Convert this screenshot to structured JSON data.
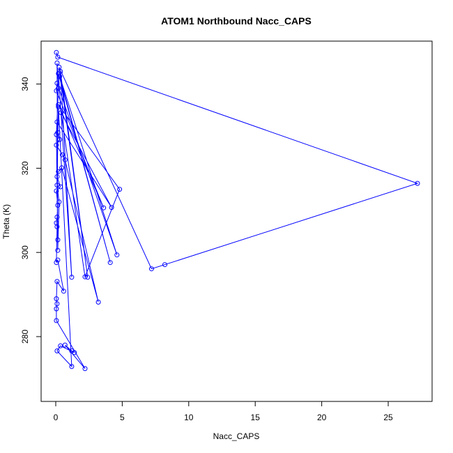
{
  "chart_data": {
    "type": "scatter",
    "title": "ATOM1 Northbound Nacc_CAPS",
    "xlabel": "Nacc_CAPS",
    "ylabel": "Theta (K)",
    "xlim": [
      -1.1,
      28.3
    ],
    "ylim": [
      264.6,
      350.2
    ],
    "x_ticks": [
      0,
      5,
      10,
      15,
      20,
      25
    ],
    "y_ticks": [
      280,
      300,
      320,
      340
    ],
    "color": "#0000ff",
    "style": "overplotted points and connecting lines",
    "series": [
      {
        "values": [
          [
            0.05,
            347.5
          ],
          [
            0.15,
            346.4
          ],
          [
            27.2,
            316.4
          ],
          [
            8.2,
            297.1
          ],
          [
            7.2,
            296.1
          ],
          [
            0.25,
            344.0
          ],
          [
            2.4,
            294.1
          ],
          [
            0.35,
            343.0
          ],
          [
            1.2,
            294.1
          ],
          [
            0.2,
            342.5
          ],
          [
            4.1,
            297.6
          ],
          [
            0.3,
            341.8
          ],
          [
            4.6,
            299.4
          ],
          [
            0.1,
            340.2
          ],
          [
            0.05,
            338.4
          ],
          [
            3.6,
            310.6
          ],
          [
            0.2,
            335.1
          ],
          [
            4.8,
            315.0
          ],
          [
            2.2,
            294.2
          ],
          [
            0.4,
            333.2
          ],
          [
            4.2,
            310.7
          ],
          [
            0.1,
            331.0
          ],
          [
            0.15,
            328.5
          ],
          [
            0.3,
            326.8
          ],
          [
            0.05,
            325.5
          ],
          [
            0.5,
            323.2
          ],
          [
            0.7,
            322.0
          ],
          [
            3.2,
            288.2
          ],
          [
            0.45,
            320.1
          ],
          [
            0.2,
            319.2
          ],
          [
            0.1,
            318.0
          ],
          [
            0.35,
            315.6
          ],
          [
            0.05,
            314.6
          ],
          [
            0.15,
            311.2
          ],
          [
            0.1,
            308.4
          ],
          [
            0.05,
            307.0
          ],
          [
            0.1,
            306.1
          ],
          [
            0.05,
            297.6
          ],
          [
            0.15,
            298.2
          ],
          [
            0.6,
            290.8
          ],
          [
            0.1,
            293.1
          ],
          [
            0.05,
            289.0
          ],
          [
            0.1,
            287.8
          ],
          [
            0.05,
            286.6
          ],
          [
            0.05,
            283.8
          ],
          [
            2.2,
            272.4
          ],
          [
            0.7,
            278.0
          ],
          [
            1.2,
            276.6
          ],
          [
            1.4,
            276.2
          ],
          [
            0.35,
            277.8
          ],
          [
            0.1,
            276.6
          ],
          [
            1.2,
            272.9
          ],
          [
            0.2,
            334.6
          ],
          [
            0.1,
            316.0
          ],
          [
            0.25,
            312.0
          ],
          [
            0.15,
            300.5
          ],
          [
            0.1,
            345.0
          ],
          [
            0.2,
            339.0
          ],
          [
            0.05,
            328.0
          ],
          [
            0.15,
            303.0
          ]
        ]
      }
    ]
  }
}
